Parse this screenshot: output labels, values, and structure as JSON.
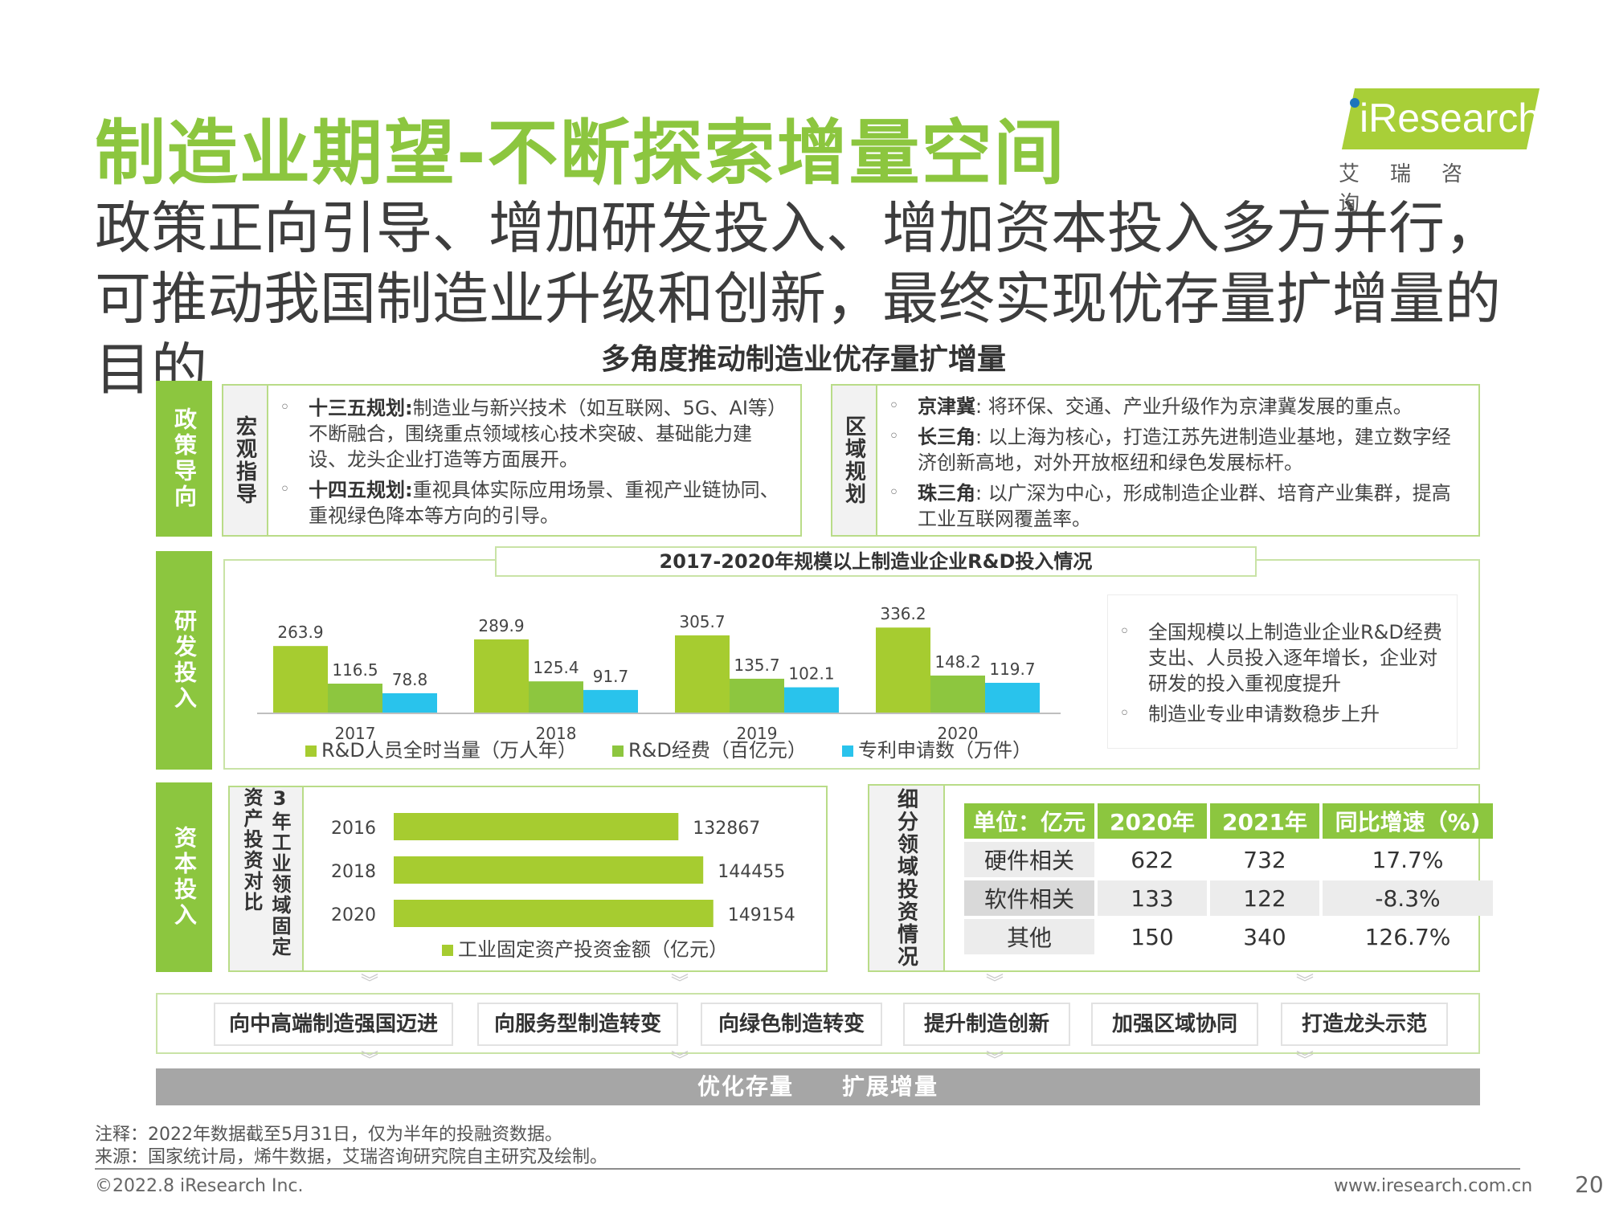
{
  "header": {
    "title": "制造业期望-不断探索增量空间",
    "subtitle": "政策正向引导、增加研发投入、增加资本投入多方并行，可推动我国制造业升级和创新，最终实现优存量扩增量的目的",
    "logo_brand": "iResearch",
    "logo_cn": "艾瑞咨询"
  },
  "section_title": "多角度推动制造业优存量扩增量",
  "policy": {
    "tab": "政策导向",
    "macro": {
      "label": "宏观指导",
      "items": [
        {
          "key": "十三五规划:",
          "text": "制造业与新兴技术（如互联网、5G、AI等）不断融合，围绕重点领域核心技术突破、基础能力建设、龙头企业打造等方面展开。"
        },
        {
          "key": "十四五规划:",
          "text": "重视具体实际应用场景、重视产业链协同、重视绿色降本等方向的引导。"
        }
      ]
    },
    "regional": {
      "label": "区域规划",
      "items": [
        {
          "key": "京津冀",
          "text": ": 将环保、交通、产业升级作为京津冀发展的重点。"
        },
        {
          "key": "长三角",
          "text": ": 以上海为核心，打造江苏先进制造业基地，建立数字经济创新高地，对外开放枢纽和绿色发展标杆。"
        },
        {
          "key": "珠三角",
          "text": ": 以广深为中心，形成制造企业群、培育产业集群，提高工业互联网覆盖率。"
        }
      ]
    }
  },
  "rd": {
    "tab": "研发投入",
    "notes": [
      "全国规模以上制造业企业R&D经费支出、人员投入逐年增长，企业对研发的投入重视度提升",
      "制造业专业申请数稳步上升"
    ]
  },
  "capital": {
    "tab": "资本投入",
    "label": "3年工业领域固定资产投资对比",
    "seg_label": "细分领域投资情况",
    "table": {
      "headers": [
        "单位：亿元",
        "2020年",
        "2021年",
        "同比增速（%)"
      ],
      "rows": [
        [
          "硬件相关",
          "622",
          "732",
          "17.7%"
        ],
        [
          "软件相关",
          "133",
          "122",
          "-8.3%"
        ],
        [
          "其他",
          "150",
          "340",
          "126.7%"
        ]
      ]
    }
  },
  "directions": [
    "向中高端制造强国迈进",
    "向服务型制造转变",
    "向绿色制造转变",
    "提升制造创新",
    "加强区域协同",
    "打造龙头示范"
  ],
  "bottom_bar": "优化存量　　扩展增量",
  "footer": {
    "note": "注释：2022年数据截至5月31日，仅为半年的投融资数据。",
    "source": "来源：国家统计局，烯牛数据，艾瑞咨询研究院自主研究及绘制。",
    "copyright": "©2022.8 iResearch Inc.",
    "site": "www.iresearch.com.cn",
    "page": "20"
  },
  "colors": {
    "green": "#8cc63f",
    "lime": "#a6cc30",
    "mid_green": "#8dc63f",
    "blue": "#29c3ec",
    "gray": "#a6a6a6"
  },
  "chart_data": [
    {
      "type": "bar",
      "title": "2017-2020年规模以上制造业企业R&D投入情况",
      "categories": [
        "2017",
        "2018",
        "2019",
        "2020"
      ],
      "series": [
        {
          "name": "R&D人员全时当量（万人年）",
          "values": [
            263.9,
            289.9,
            305.7,
            336.2
          ],
          "color": "#a6cc30"
        },
        {
          "name": "R&D经费（百亿元）",
          "values": [
            116.5,
            125.4,
            135.7,
            148.2
          ],
          "color": "#8dc63f"
        },
        {
          "name": "专利申请数（万件）",
          "values": [
            78.8,
            91.7,
            102.1,
            119.7
          ],
          "color": "#29c3ec"
        }
      ],
      "legend": "bottom"
    },
    {
      "type": "bar",
      "orientation": "horizontal",
      "categories": [
        "2016",
        "2018",
        "2020"
      ],
      "series": [
        {
          "name": "工业固定资产投资金额（亿元）",
          "values": [
            132867,
            144455,
            149154
          ],
          "color": "#a6cc30"
        }
      ],
      "legend": "bottom"
    }
  ]
}
